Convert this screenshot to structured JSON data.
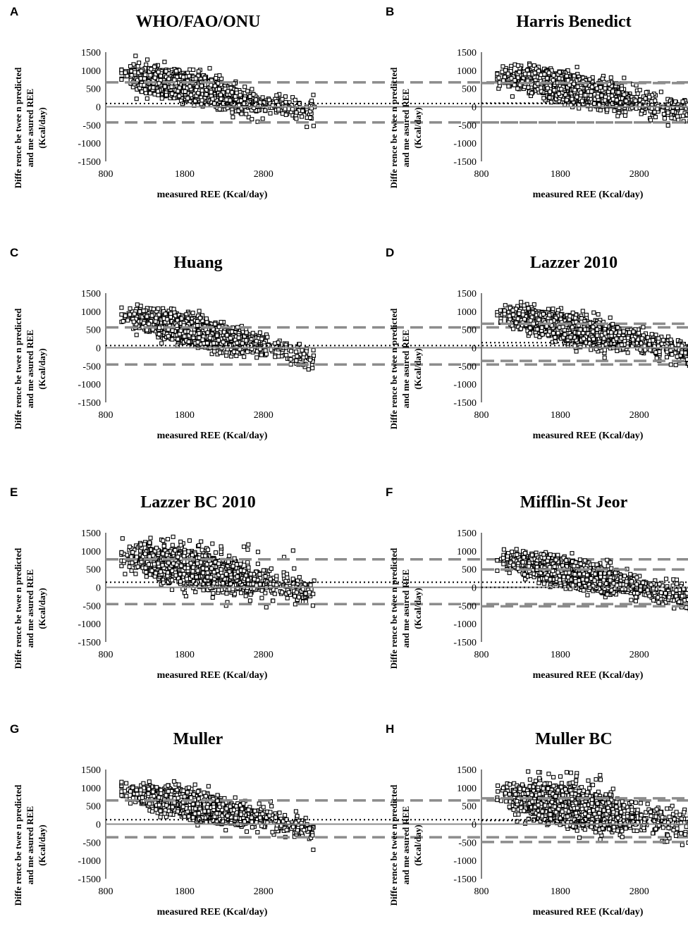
{
  "figure": {
    "xlabel": "measured REE  (Kcal/day)",
    "ylabel_lines": [
      "Diffe rence be twee n predicted",
      "and me asured REE",
      "(Kcal/day)"
    ],
    "colors": {
      "points": "#000000",
      "mean_line": "#000000",
      "loa_line": "#8c8c8c",
      "zero_line": "#8c8c8c"
    }
  },
  "chart_data": [
    {
      "panel": "A",
      "type": "scatter",
      "title": "WHO/FAO/ONU",
      "xlabel": "measured REE  (Kcal/day)",
      "ylabel": "Diffe rence be twee n predicted and me asured REE (Kcal/day)",
      "xlim": [
        800,
        3500
      ],
      "ylim": [
        -1500,
        1500
      ],
      "xticks": [
        800,
        1800,
        2800
      ],
      "yticks": [
        1500,
        1000,
        500,
        0,
        -500,
        -1000,
        -1500
      ],
      "mean_bias": 90,
      "upper_loa": 670,
      "lower_loa": -430,
      "trend": {
        "slope": -0.45,
        "intercept": 1000,
        "sd": 170
      },
      "outliers_high": false,
      "seed": 11
    },
    {
      "panel": "B",
      "type": "scatter",
      "title": "Harris Benedict",
      "xlabel": "measured REE  (Kcal/day)",
      "ylabel": "Diffe rence be twee n predicted and me asured REE (Kcal/day)",
      "xlim": [
        800,
        3500
      ],
      "ylim": [
        -1500,
        1500
      ],
      "xticks": [
        800,
        1800,
        2800
      ],
      "yticks": [
        1500,
        1000,
        500,
        0,
        -500,
        -1000,
        -1500
      ],
      "mean_bias": 100,
      "upper_loa": 650,
      "lower_loa": -430,
      "trend": {
        "slope": -0.42,
        "intercept": 960,
        "sd": 170
      },
      "outliers_high": false,
      "seed": 23
    },
    {
      "panel": "C",
      "type": "scatter",
      "title": "Huang",
      "xlabel": "measured REE  (Kcal/day)",
      "ylabel": "Diffe rence be twee n predicted and me asured REE (Kcal/day)",
      "xlim": [
        800,
        3500
      ],
      "ylim": [
        -1500,
        1500
      ],
      "xticks": [
        800,
        1800,
        2800
      ],
      "yticks": [
        1500,
        1000,
        500,
        0,
        -500,
        -1000,
        -1500
      ],
      "mean_bias": 60,
      "upper_loa": 560,
      "lower_loa": -460,
      "trend": {
        "slope": -0.48,
        "intercept": 990,
        "sd": 160
      },
      "outliers_high": false,
      "seed": 37
    },
    {
      "panel": "D",
      "type": "scatter",
      "title": "Lazzer 2010",
      "xlabel": "measured REE  (Kcal/day)",
      "ylabel": "Diffe rence be twee n predicted and me asured REE (Kcal/day)",
      "xlim": [
        800,
        3500
      ],
      "ylim": [
        -1500,
        1500
      ],
      "xticks": [
        800,
        1800,
        2800
      ],
      "yticks": [
        1500,
        1000,
        500,
        0,
        -500,
        -1000,
        -1500
      ],
      "mean_bias": 140,
      "upper_loa": 660,
      "lower_loa": -360,
      "trend": {
        "slope": -0.46,
        "intercept": 1050,
        "sd": 165
      },
      "outliers_high": false,
      "seed": 41
    },
    {
      "panel": "E",
      "type": "scatter",
      "title": "Lazzer BC 2010",
      "xlabel": "measured REE  (Kcal/day)",
      "ylabel": "Diffe rence be twee n predicted and me asured REE (Kcal/day)",
      "xlim": [
        800,
        3500
      ],
      "ylim": [
        -1500,
        1500
      ],
      "xticks": [
        800,
        1800,
        2800
      ],
      "yticks": [
        1500,
        1000,
        500,
        0,
        -500,
        -1000,
        -1500
      ],
      "mean_bias": 140,
      "upper_loa": 770,
      "lower_loa": -460,
      "trend": {
        "slope": -0.4,
        "intercept": 950,
        "sd": 210
      },
      "outliers_high": true,
      "seed": 53
    },
    {
      "panel": "F",
      "type": "scatter",
      "title": "Mifflin-St Jeor",
      "xlabel": "measured REE  (Kcal/day)",
      "ylabel": "Diffe rence be twee n predicted and me asured REE (Kcal/day)",
      "xlim": [
        800,
        3500
      ],
      "ylim": [
        -1500,
        1500
      ],
      "xticks": [
        800,
        1800,
        2800
      ],
      "yticks": [
        1500,
        1000,
        500,
        0,
        -500,
        -1000,
        -1500
      ],
      "mean_bias": 0,
      "upper_loa": 490,
      "lower_loa": -520,
      "trend": {
        "slope": -0.44,
        "intercept": 880,
        "sd": 160
      },
      "outliers_high": false,
      "seed": 67
    },
    {
      "panel": "G",
      "type": "scatter",
      "title": "Muller",
      "xlabel": "measured REE  (Kcal/day)",
      "ylabel": "Diffe rence be twee n predicted and me asured REE (Kcal/day)",
      "xlim": [
        800,
        3500
      ],
      "ylim": [
        -1500,
        1500
      ],
      "xticks": [
        800,
        1800,
        2800
      ],
      "yticks": [
        1500,
        1000,
        500,
        0,
        -500,
        -1000,
        -1500
      ],
      "mean_bias": 120,
      "upper_loa": 650,
      "lower_loa": -360,
      "trend": {
        "slope": -0.43,
        "intercept": 990,
        "sd": 160
      },
      "outliers_high": false,
      "seed": 79
    },
    {
      "panel": "H",
      "type": "scatter",
      "title": "Muller BC",
      "xlabel": "measured REE  (Kcal/day)",
      "ylabel": "Diffe rence be twee n predicted and me asured REE (Kcal/day)",
      "xlim": [
        800,
        3500
      ],
      "ylim": [
        -1500,
        1500
      ],
      "xticks": [
        800,
        1800,
        2800
      ],
      "yticks": [
        1500,
        1000,
        500,
        0,
        -500,
        -1000,
        -1500
      ],
      "mean_bias": 100,
      "upper_loa": 710,
      "lower_loa": -490,
      "trend": {
        "slope": -0.38,
        "intercept": 870,
        "sd": 220
      },
      "outliers_high": true,
      "seed": 97
    }
  ]
}
